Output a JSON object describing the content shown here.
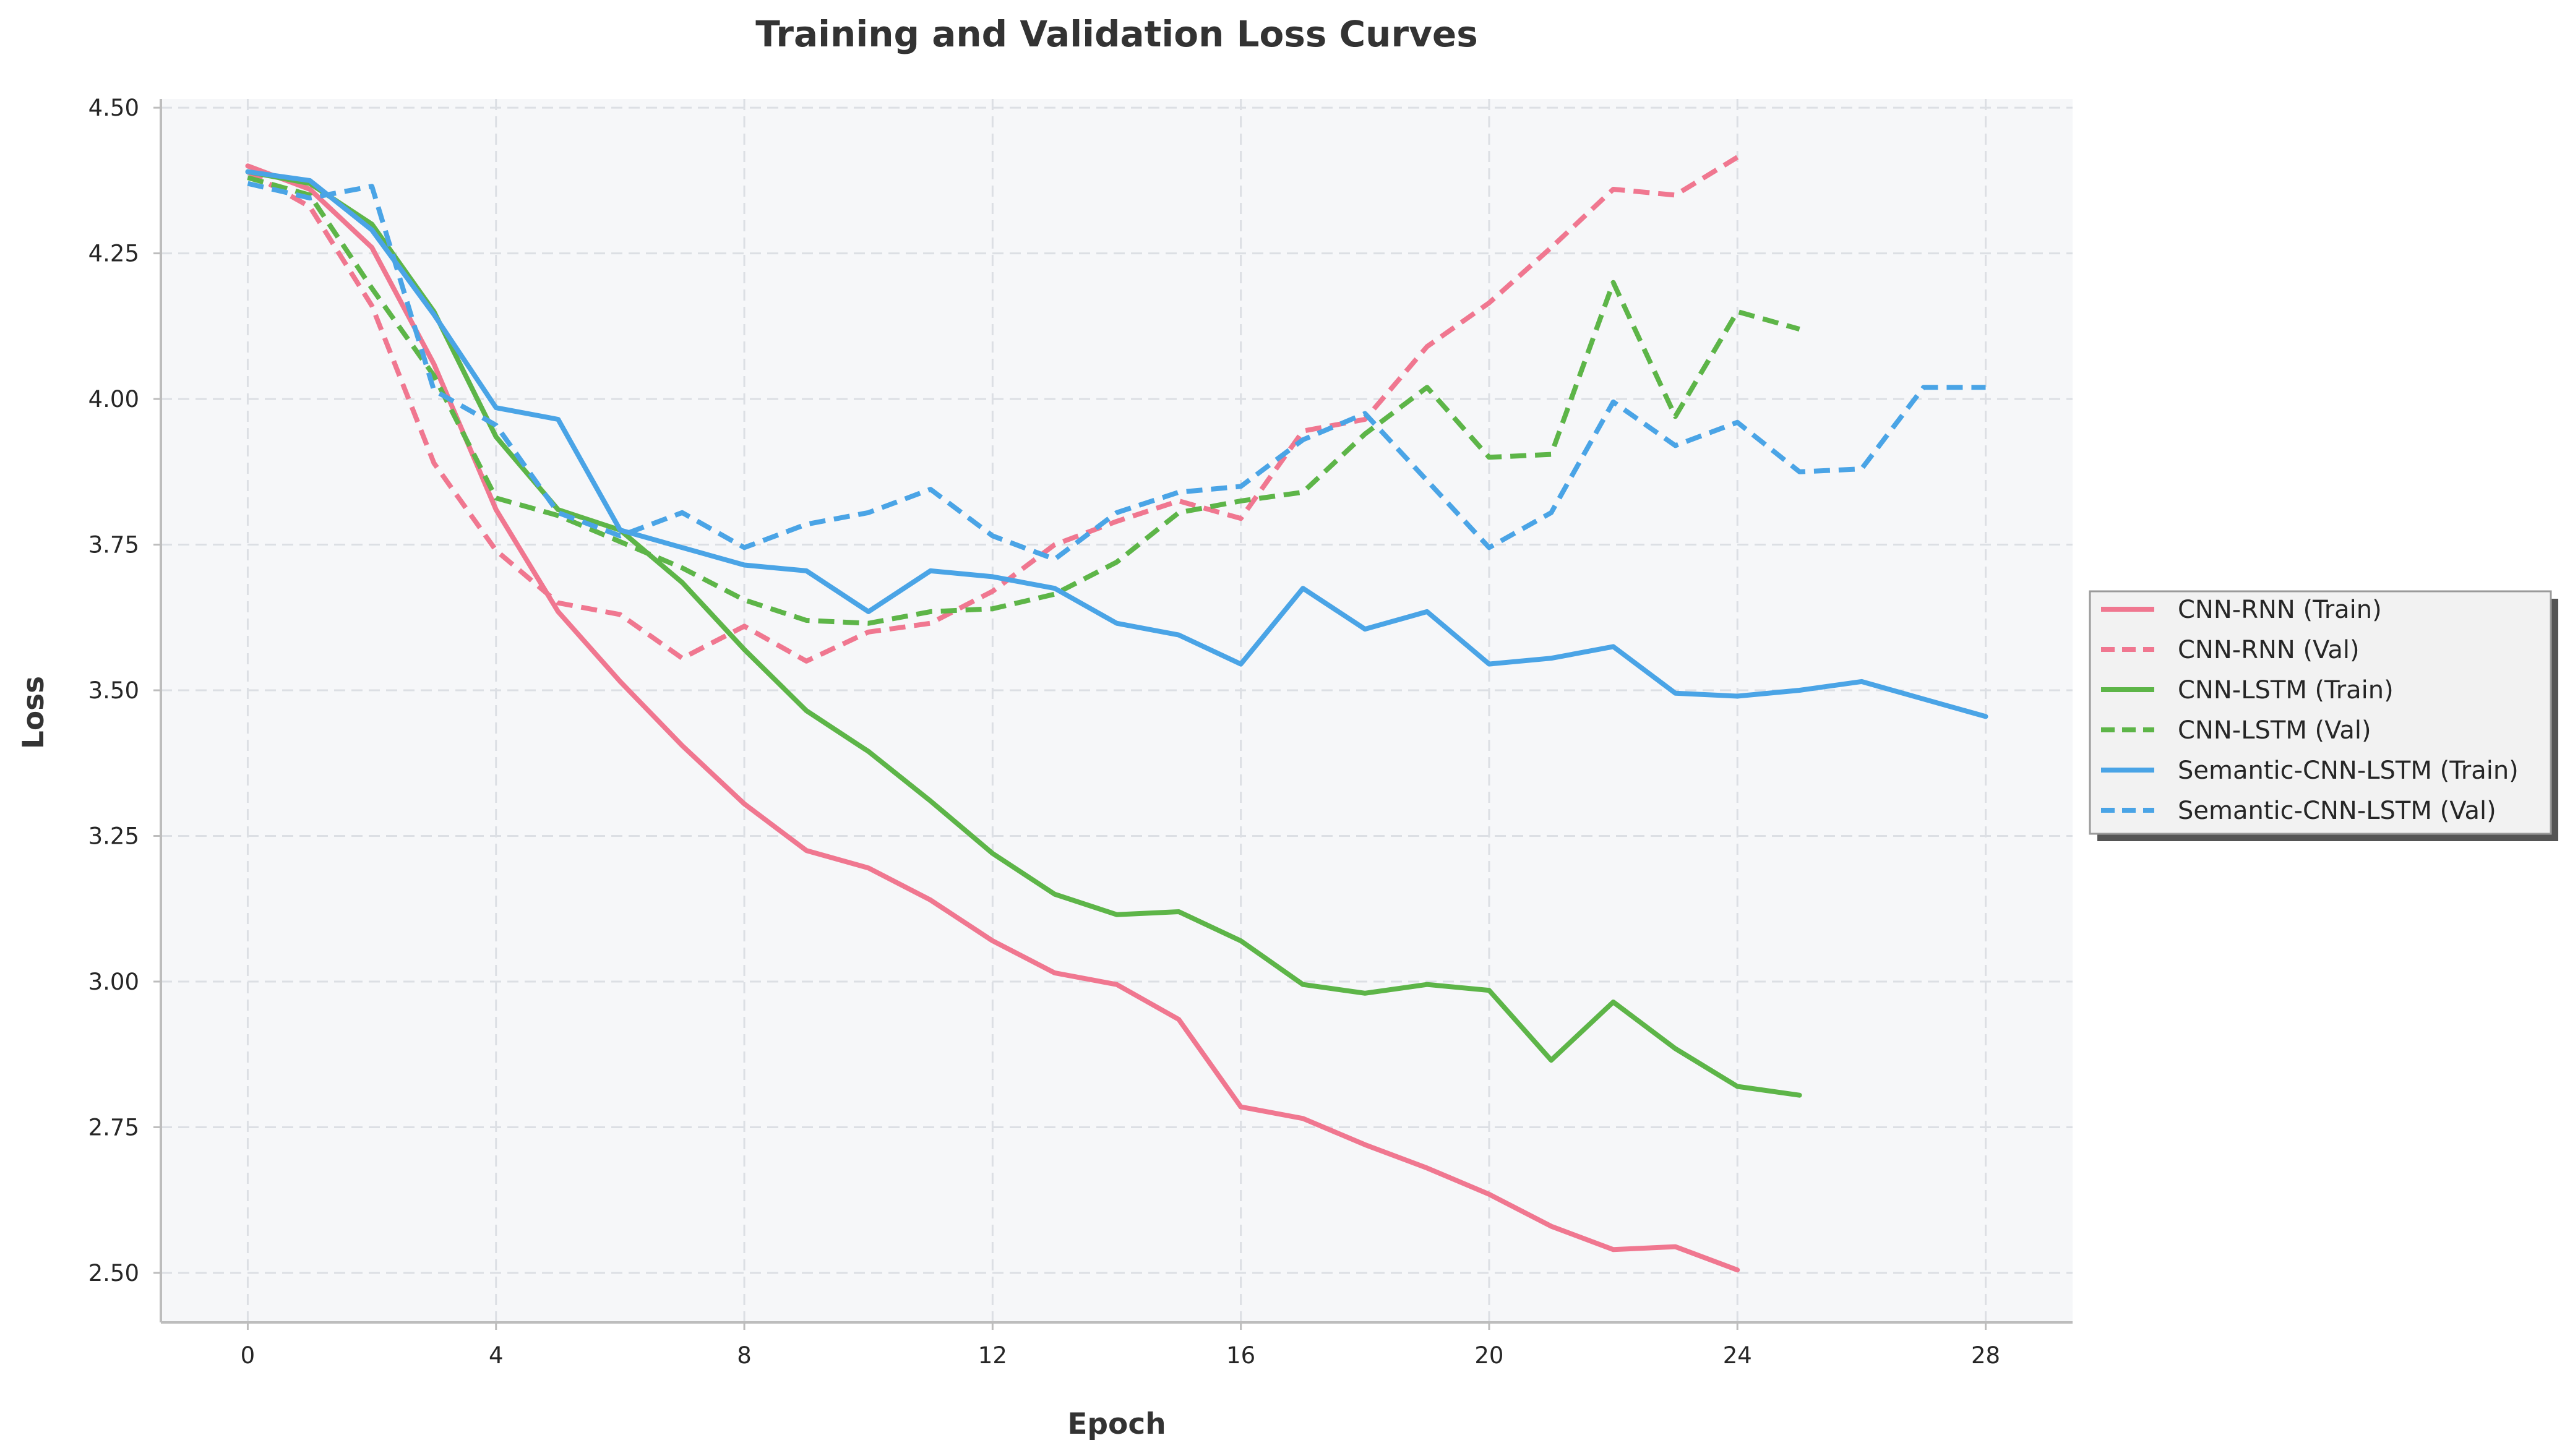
{
  "chart_data": {
    "type": "line",
    "title": "Training and Validation Loss Curves",
    "xlabel": "Epoch",
    "ylabel": "Loss",
    "xlim": [
      -1.4,
      29.4
    ],
    "ylim": [
      2.415,
      4.515
    ],
    "xticks": [
      0,
      4,
      8,
      12,
      16,
      20,
      24,
      28
    ],
    "xtick_labels": [
      "0",
      "4",
      "8",
      "12",
      "16",
      "20",
      "24",
      "28"
    ],
    "yticks": [
      2.5,
      2.75,
      3.0,
      3.25,
      3.5,
      3.75,
      4.0,
      4.25,
      4.5
    ],
    "ytick_labels": [
      "2.50",
      "2.75",
      "3.00",
      "3.25",
      "3.50",
      "3.75",
      "4.00",
      "4.25",
      "4.50"
    ],
    "grid": true,
    "legend_position": "center-right outside",
    "series": [
      {
        "name": "CNN-RNN (Train)",
        "color": "#f07790",
        "style": "solid",
        "x": [
          0,
          1,
          2,
          3,
          4,
          5,
          6,
          7,
          8,
          9,
          10,
          11,
          12,
          13,
          14,
          15,
          16,
          17,
          18,
          19,
          20,
          21,
          22,
          23,
          24
        ],
        "y": [
          4.4,
          4.36,
          4.26,
          4.06,
          3.81,
          3.635,
          3.515,
          3.405,
          3.305,
          3.225,
          3.195,
          3.14,
          3.07,
          3.015,
          2.995,
          2.935,
          2.785,
          2.765,
          2.72,
          2.68,
          2.635,
          2.58,
          2.54,
          2.545,
          2.505
        ]
      },
      {
        "name": "CNN-RNN (Val)",
        "color": "#f07790",
        "style": "dashed",
        "x": [
          0,
          1,
          2,
          3,
          4,
          5,
          6,
          7,
          8,
          9,
          10,
          11,
          12,
          13,
          14,
          15,
          16,
          17,
          18,
          19,
          20,
          21,
          22,
          23,
          24
        ],
        "y": [
          4.39,
          4.33,
          4.16,
          3.89,
          3.74,
          3.65,
          3.63,
          3.555,
          3.61,
          3.55,
          3.6,
          3.615,
          3.67,
          3.75,
          3.79,
          3.825,
          3.795,
          3.945,
          3.965,
          4.09,
          4.165,
          4.26,
          4.36,
          4.35,
          4.415
        ]
      },
      {
        "name": "CNN-LSTM (Train)",
        "color": "#5db548",
        "style": "solid",
        "x": [
          0,
          1,
          2,
          3,
          4,
          5,
          6,
          7,
          8,
          9,
          10,
          11,
          12,
          13,
          14,
          15,
          16,
          17,
          18,
          19,
          20,
          21,
          22,
          23,
          24,
          25
        ],
        "y": [
          4.39,
          4.37,
          4.3,
          4.15,
          3.935,
          3.81,
          3.775,
          3.685,
          3.57,
          3.465,
          3.395,
          3.31,
          3.22,
          3.15,
          3.115,
          3.12,
          3.07,
          2.995,
          2.98,
          2.995,
          2.985,
          2.865,
          2.965,
          2.885,
          2.82,
          2.805
        ]
      },
      {
        "name": "CNN-LSTM (Val)",
        "color": "#5db548",
        "style": "dashed",
        "x": [
          0,
          1,
          2,
          3,
          4,
          5,
          6,
          7,
          8,
          9,
          10,
          11,
          12,
          13,
          14,
          15,
          16,
          17,
          18,
          19,
          20,
          21,
          22,
          23,
          24,
          25
        ],
        "y": [
          4.38,
          4.35,
          4.19,
          4.04,
          3.83,
          3.8,
          3.755,
          3.71,
          3.655,
          3.62,
          3.615,
          3.635,
          3.64,
          3.665,
          3.72,
          3.805,
          3.825,
          3.84,
          3.94,
          4.02,
          3.9,
          3.905,
          4.2,
          3.97,
          4.15,
          4.12
        ]
      },
      {
        "name": "Semantic-CNN-LSTM (Train)",
        "color": "#4aa4e6",
        "style": "solid",
        "x": [
          0,
          1,
          2,
          3,
          4,
          5,
          6,
          7,
          8,
          9,
          10,
          11,
          12,
          13,
          14,
          15,
          16,
          17,
          18,
          19,
          20,
          21,
          22,
          23,
          24,
          25,
          26,
          27,
          28
        ],
        "y": [
          4.39,
          4.375,
          4.29,
          4.145,
          3.985,
          3.965,
          3.775,
          3.745,
          3.715,
          3.705,
          3.635,
          3.705,
          3.695,
          3.675,
          3.615,
          3.595,
          3.545,
          3.675,
          3.605,
          3.635,
          3.545,
          3.555,
          3.575,
          3.495,
          3.49,
          3.5,
          3.515,
          3.485,
          3.455
        ]
      },
      {
        "name": "Semantic-CNN-LSTM (Val)",
        "color": "#4aa4e6",
        "style": "dashed",
        "x": [
          0,
          1,
          2,
          3,
          4,
          5,
          6,
          7,
          8,
          9,
          10,
          11,
          12,
          13,
          14,
          15,
          16,
          17,
          18,
          19,
          20,
          21,
          22,
          23,
          24,
          25,
          26,
          27,
          28
        ],
        "y": [
          4.37,
          4.345,
          4.365,
          4.015,
          3.955,
          3.805,
          3.765,
          3.805,
          3.745,
          3.785,
          3.805,
          3.845,
          3.765,
          3.725,
          3.805,
          3.84,
          3.85,
          3.93,
          3.975,
          3.86,
          3.745,
          3.805,
          3.995,
          3.92,
          3.96,
          3.875,
          3.88,
          4.02,
          4.02
        ]
      }
    ]
  }
}
